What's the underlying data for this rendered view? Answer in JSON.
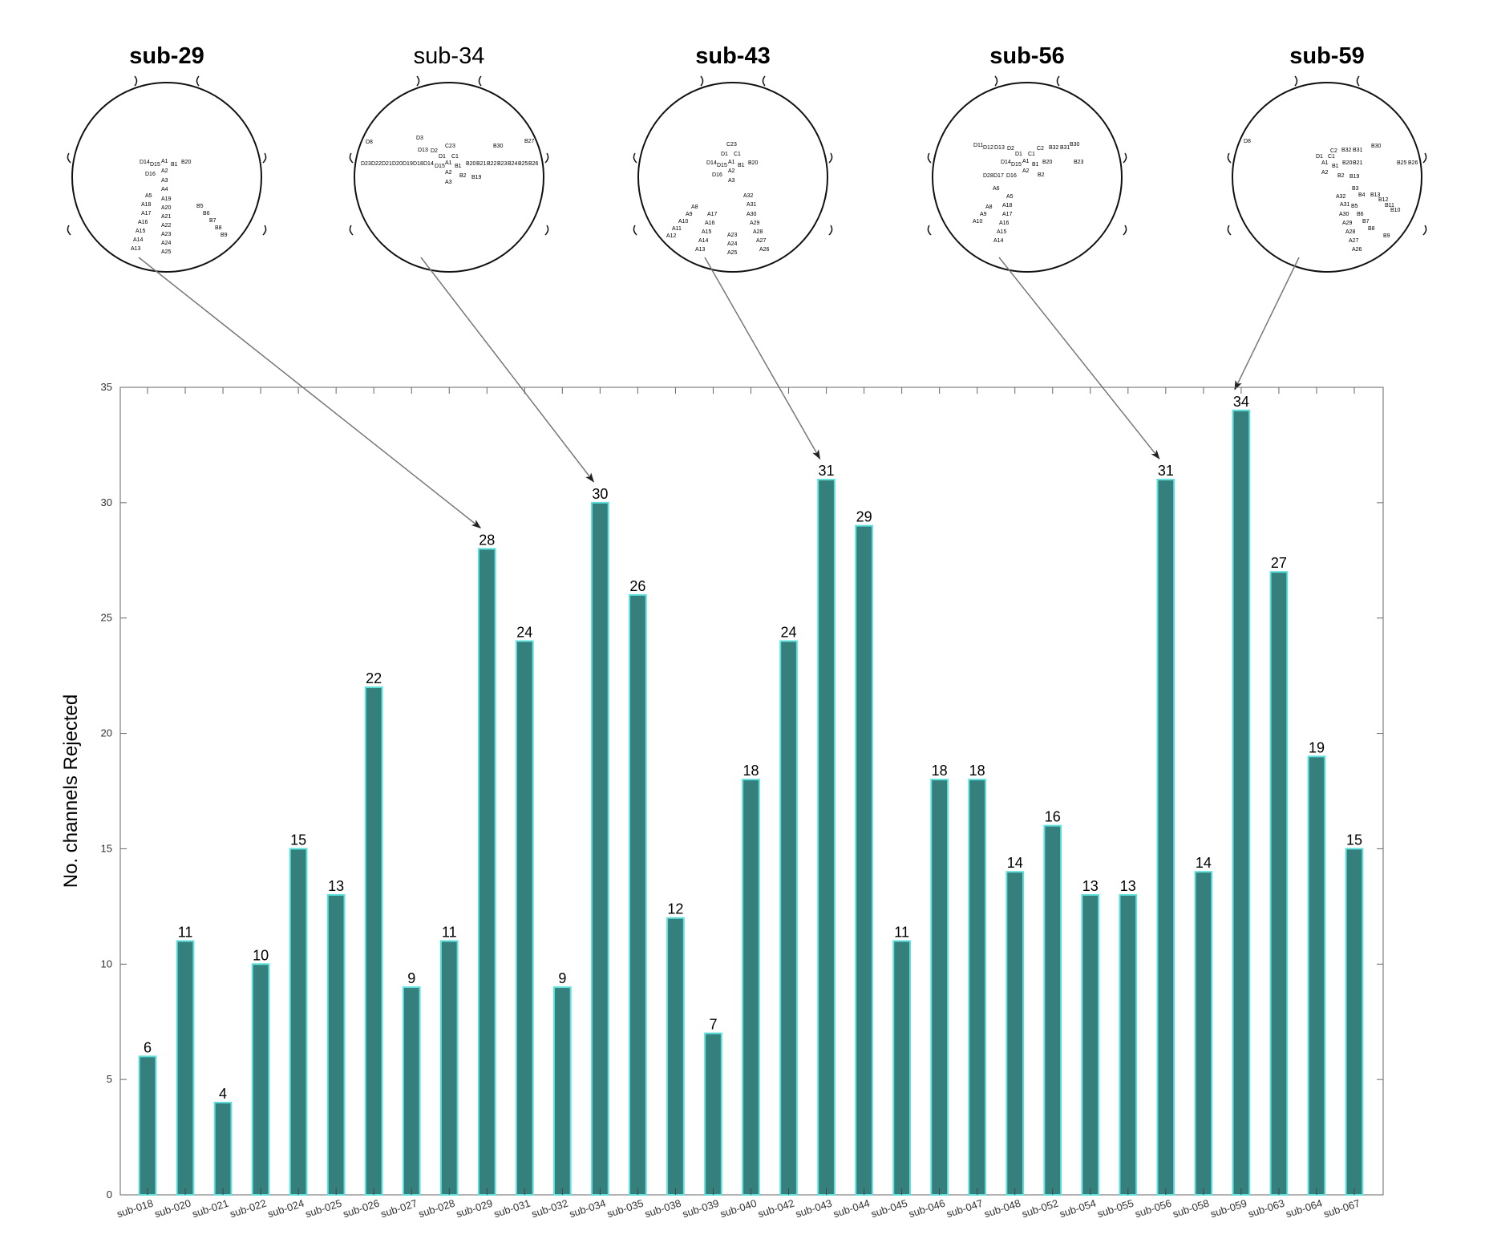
{
  "chart_data": {
    "type": "bar",
    "ylabel": "No. channels Rejected",
    "xlabel": "",
    "title": "",
    "ylim": [
      0,
      35
    ],
    "yticks": [
      0,
      5,
      10,
      15,
      20,
      25,
      30,
      35
    ],
    "categories": [
      "sub-018",
      "sub-020",
      "sub-021",
      "sub-022",
      "sub-024",
      "sub-025",
      "sub-026",
      "sub-027",
      "sub-028",
      "sub-029",
      "sub-031",
      "sub-032",
      "sub-034",
      "sub-035",
      "sub-038",
      "sub-039",
      "sub-040",
      "sub-042",
      "sub-043",
      "sub-044",
      "sub-045",
      "sub-046",
      "sub-047",
      "sub-048",
      "sub-052",
      "sub-054",
      "sub-055",
      "sub-056",
      "sub-058",
      "sub-059",
      "sub-063",
      "sub-064",
      "sub-067"
    ],
    "values": [
      6,
      11,
      4,
      10,
      15,
      13,
      22,
      9,
      11,
      28,
      24,
      9,
      30,
      26,
      12,
      7,
      18,
      24,
      31,
      29,
      11,
      18,
      18,
      14,
      16,
      13,
      13,
      31,
      14,
      34,
      27,
      19,
      15
    ],
    "bar_color": "#357f7d",
    "bar_edge_color": "#5fe0dc",
    "grid": false
  },
  "head_maps": [
    {
      "label": "sub-29",
      "bold": true,
      "points_to": "sub-029",
      "electrodes": [
        [
          "D14",
          84,
          101
        ],
        [
          "D15",
          97,
          104
        ],
        [
          "A1",
          111,
          100
        ],
        [
          "B1",
          123,
          104
        ],
        [
          "B20",
          136,
          101
        ],
        [
          "D16",
          91,
          116
        ],
        [
          "A2",
          111,
          112
        ],
        [
          "A3",
          111,
          124
        ],
        [
          "A4",
          111,
          135
        ],
        [
          "A5",
          91,
          143
        ],
        [
          "A19",
          111,
          147
        ],
        [
          "A18",
          86,
          154
        ],
        [
          "A20",
          111,
          158
        ],
        [
          "A17",
          86,
          165
        ],
        [
          "A21",
          111,
          169
        ],
        [
          "A16",
          82,
          176
        ],
        [
          "A22",
          111,
          180
        ],
        [
          "A15",
          79,
          187
        ],
        [
          "A23",
          111,
          191
        ],
        [
          "A14",
          76,
          198
        ],
        [
          "A24",
          111,
          202
        ],
        [
          "A13",
          73,
          209
        ],
        [
          "A25",
          111,
          213
        ],
        [
          "B5",
          155,
          156
        ],
        [
          "B6",
          163,
          165
        ],
        [
          "B7",
          171,
          174
        ],
        [
          "B8",
          178,
          183
        ],
        [
          "B9",
          185,
          192
        ]
      ]
    },
    {
      "label": "sub-34",
      "bold": false,
      "points_to": "sub-034",
      "electrodes": [
        [
          "D8",
          14,
          76
        ],
        [
          "D3",
          77,
          71
        ],
        [
          "D13",
          79,
          86
        ],
        [
          "C23",
          113,
          81
        ],
        [
          "D2",
          95,
          87
        ],
        [
          "B30",
          173,
          81
        ],
        [
          "B27",
          212,
          75
        ],
        [
          "D1",
          105,
          94
        ],
        [
          "C1",
          121,
          94
        ],
        [
          "D23",
          8,
          103
        ],
        [
          "D22",
          21,
          103
        ],
        [
          "D21",
          34,
          103
        ],
        [
          "D20",
          47,
          103
        ],
        [
          "D19",
          60,
          103
        ],
        [
          "D18",
          73,
          103
        ],
        [
          "D14",
          86,
          103
        ],
        [
          "D15",
          100,
          106
        ],
        [
          "A1",
          113,
          102
        ],
        [
          "B1",
          125,
          106
        ],
        [
          "B20",
          139,
          103
        ],
        [
          "B21",
          152,
          103
        ],
        [
          "B22",
          165,
          103
        ],
        [
          "B23",
          178,
          103
        ],
        [
          "B24",
          191,
          103
        ],
        [
          "B25",
          204,
          103
        ],
        [
          "B26",
          217,
          103
        ],
        [
          "A2",
          113,
          114
        ],
        [
          "B2",
          131,
          118
        ],
        [
          "B19",
          146,
          120
        ],
        [
          "A3",
          113,
          126
        ]
      ]
    },
    {
      "label": "sub-43",
      "bold": true,
      "points_to": "sub-043",
      "electrodes": [
        [
          "C23",
          110,
          79
        ],
        [
          "D1",
          103,
          91
        ],
        [
          "C1",
          119,
          91
        ],
        [
          "D14",
          85,
          102
        ],
        [
          "D15",
          98,
          105
        ],
        [
          "A1",
          112,
          101
        ],
        [
          "B1",
          124,
          105
        ],
        [
          "B20",
          137,
          102
        ],
        [
          "D16",
          92,
          117
        ],
        [
          "A2",
          112,
          112
        ],
        [
          "A3",
          112,
          124
        ],
        [
          "A32",
          131,
          143
        ],
        [
          "A31",
          135,
          154
        ],
        [
          "A8",
          66,
          157
        ],
        [
          "A30",
          135,
          166
        ],
        [
          "A9",
          59,
          166
        ],
        [
          "A17",
          86,
          166
        ],
        [
          "A10",
          50,
          175
        ],
        [
          "A16",
          83,
          177
        ],
        [
          "A29",
          139,
          177
        ],
        [
          "A11",
          42,
          184
        ],
        [
          "A15",
          79,
          188
        ],
        [
          "A28",
          143,
          188
        ],
        [
          "A12",
          35,
          193
        ],
        [
          "A23",
          111,
          192
        ],
        [
          "A14",
          75,
          199
        ],
        [
          "A27",
          147,
          199
        ],
        [
          "A24",
          111,
          203
        ],
        [
          "A13",
          71,
          210
        ],
        [
          "A26",
          151,
          210
        ],
        [
          "A25",
          111,
          214
        ]
      ]
    },
    {
      "label": "sub-56",
      "bold": true,
      "points_to": "sub-056",
      "electrodes": [
        [
          "D11",
          51,
          80
        ],
        [
          "D12",
          63,
          83
        ],
        [
          "D13",
          77,
          83
        ],
        [
          "B30",
          171,
          79
        ],
        [
          "D2",
          93,
          84
        ],
        [
          "C2",
          130,
          84
        ],
        [
          "B32",
          145,
          83
        ],
        [
          "B31",
          159,
          83
        ],
        [
          "D1",
          103,
          91
        ],
        [
          "C1",
          119,
          91
        ],
        [
          "D14",
          85,
          101
        ],
        [
          "D15",
          98,
          104
        ],
        [
          "A1",
          112,
          100
        ],
        [
          "B1",
          124,
          104
        ],
        [
          "B20",
          137,
          101
        ],
        [
          "B23",
          176,
          101
        ],
        [
          "A2",
          112,
          112
        ],
        [
          "B2",
          131,
          117
        ],
        [
          "D28",
          63,
          118
        ],
        [
          "D17",
          76,
          118
        ],
        [
          "D16",
          92,
          118
        ],
        [
          "A6",
          75,
          134
        ],
        [
          "A5",
          92,
          144
        ],
        [
          "A18",
          87,
          155
        ],
        [
          "A8",
          66,
          157
        ],
        [
          "A9",
          59,
          166
        ],
        [
          "A17",
          87,
          166
        ],
        [
          "A10",
          50,
          175
        ],
        [
          "A16",
          83,
          177
        ],
        [
          "A15",
          80,
          188
        ],
        [
          "A14",
          76,
          199
        ]
      ]
    },
    {
      "label": "sub-59",
      "bold": true,
      "points_to": "sub-059",
      "electrodes": [
        [
          "D8",
          14,
          75
        ],
        [
          "B30",
          173,
          81
        ],
        [
          "C2",
          122,
          87
        ],
        [
          "B32",
          136,
          86
        ],
        [
          "B31",
          150,
          86
        ],
        [
          "D1",
          104,
          94
        ],
        [
          "C1",
          119,
          94
        ],
        [
          "A1",
          111,
          102
        ],
        [
          "B1",
          124,
          106
        ],
        [
          "B20",
          137,
          102
        ],
        [
          "B21",
          150,
          102
        ],
        [
          "B25",
          205,
          102
        ],
        [
          "B26",
          219,
          102
        ],
        [
          "A2",
          111,
          114
        ],
        [
          "B2",
          131,
          118
        ],
        [
          "B19",
          146,
          119
        ],
        [
          "B3",
          149,
          134
        ],
        [
          "A32",
          129,
          144
        ],
        [
          "B4",
          157,
          142
        ],
        [
          "B13",
          172,
          142
        ],
        [
          "B12",
          182,
          148
        ],
        [
          "A31",
          134,
          154
        ],
        [
          "B5",
          148,
          156
        ],
        [
          "B11",
          190,
          155
        ],
        [
          "B10",
          197,
          161
        ],
        [
          "A30",
          133,
          166
        ],
        [
          "B6",
          155,
          166
        ],
        [
          "A29",
          137,
          177
        ],
        [
          "B7",
          162,
          175
        ],
        [
          "A28",
          141,
          188
        ],
        [
          "B8",
          169,
          184
        ],
        [
          "A27",
          145,
          199
        ],
        [
          "B9",
          188,
          193
        ],
        [
          "A26",
          149,
          210
        ]
      ]
    }
  ]
}
